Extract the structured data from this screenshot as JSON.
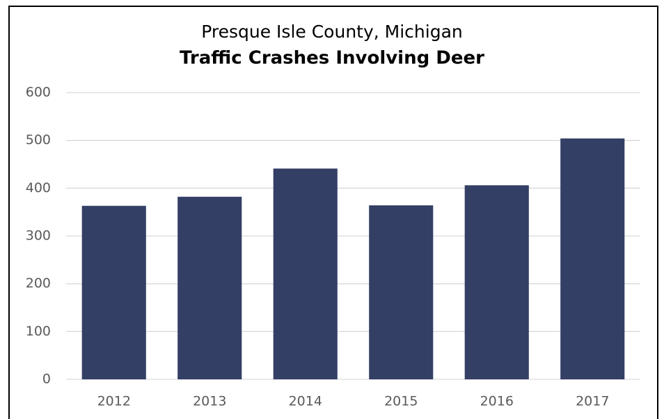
{
  "chart_data": {
    "type": "bar",
    "subtitle": "Presque Isle County, Michigan",
    "title": "Traffic Crashes Involving Deer",
    "categories": [
      "2012",
      "2013",
      "2014",
      "2015",
      "2016",
      "2017"
    ],
    "values": [
      363,
      382,
      441,
      364,
      406,
      504
    ],
    "color": "#333f65",
    "ylim": [
      0,
      600
    ],
    "yticks": [
      0,
      100,
      200,
      300,
      400,
      500,
      600
    ],
    "grid": true
  }
}
